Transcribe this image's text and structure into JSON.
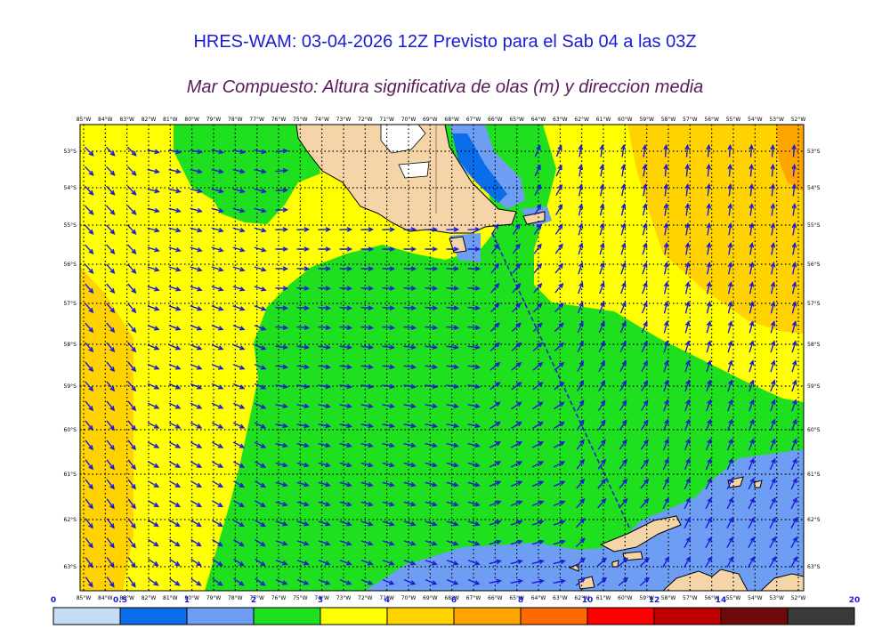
{
  "header": {
    "title": "HRES-WAM: 03-04-2026 12Z Previsto para el Sab 04 a las 03Z",
    "subtitle": "Mar Compuesto: Altura significativa de olas (m) y direccion media"
  },
  "map": {
    "longitude_labels": [
      "85°W",
      "84°W",
      "83°W",
      "82°W",
      "81°W",
      "80°W",
      "79°W",
      "78°W",
      "77°W",
      "76°W",
      "75°W",
      "74°W",
      "73°W",
      "72°W",
      "71°W",
      "70°W",
      "69°W",
      "68°W",
      "67°W",
      "66°W",
      "65°W",
      "64°W",
      "63°W",
      "62°W",
      "61°W",
      "60°W",
      "59°W",
      "58°W",
      "57°W",
      "56°W",
      "55°W",
      "54°W",
      "53°W",
      "52°W"
    ],
    "latitude_labels": [
      "53°S",
      "54°S",
      "55°S",
      "56°S",
      "57°S",
      "58°S",
      "59°S",
      "60°S",
      "61°S",
      "62°S",
      "63°S"
    ]
  },
  "legend": {
    "tick_labels": [
      "0",
      "0.5",
      "1",
      "2",
      "3",
      "4",
      "6",
      "8",
      "10",
      "12",
      "14",
      "20"
    ],
    "colors": [
      "#c6dcf4",
      "#0a6eea",
      "#6d9ef4",
      "#1ee01e",
      "#ffff00",
      "#ffd200",
      "#ffa500",
      "#ff6a00",
      "#ff0000",
      "#c00000",
      "#6e0a0a",
      "#3a3a3a"
    ],
    "units": "m"
  },
  "colors": {
    "title": "#1a1ad8",
    "subtitle": "#5a1a5a",
    "arrow": "#1a1ad8",
    "land": "#f5d4a8",
    "grid": "#000000"
  }
}
